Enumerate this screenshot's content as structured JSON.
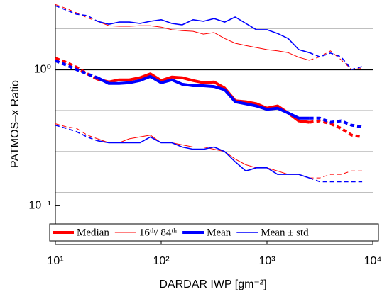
{
  "chart_data": {
    "type": "line",
    "xlabel": "DARDAR IWP [gm⁻²]",
    "ylabel": "PATMOS–x Ratio",
    "xscale": "log",
    "yscale": "log",
    "xlim": [
      10,
      10000
    ],
    "ylim": [
      0.052,
      3.05
    ],
    "xticks": [
      {
        "value": 10,
        "label": "10¹"
      },
      {
        "value": 100,
        "label": "10²"
      },
      {
        "value": 1000,
        "label": "10³"
      },
      {
        "value": 10000,
        "label": "10⁴"
      }
    ],
    "yticks": [
      {
        "value": 0.1,
        "label": "10⁻¹"
      },
      {
        "value": 1,
        "label": "10⁰"
      }
    ],
    "grid_values": [
      2,
      0.5,
      0.25,
      0.125
    ],
    "reference_line": 1,
    "solid_xlim": [
      32,
      2512
    ],
    "legend": "lower center",
    "x": [
      10,
      12.6,
      15.8,
      20,
      25,
      32,
      40,
      50,
      63,
      79,
      100,
      126,
      158,
      200,
      251,
      316,
      398,
      501,
      631,
      794,
      1000,
      1259,
      1585,
      1995,
      2512,
      3162,
      3981,
      5012,
      6310,
      7943
    ],
    "series": [
      {
        "name": "Median",
        "color": "#ff0000",
        "width": 4,
        "values": [
          1.21,
          1.13,
          1.04,
          0.93,
          0.85,
          0.81,
          0.84,
          0.84,
          0.87,
          0.93,
          0.83,
          0.88,
          0.87,
          0.83,
          0.8,
          0.81,
          0.73,
          0.59,
          0.58,
          0.56,
          0.52,
          0.54,
          0.48,
          0.42,
          0.41,
          0.42,
          0.4,
          0.37,
          0.33,
          0.32
        ]
      },
      {
        "name": "16ᵗʰ/ 84ᵗʰ",
        "color": "#ff0000",
        "width": 1,
        "lower": [
          0.4,
          0.38,
          0.37,
          0.33,
          0.31,
          0.29,
          0.29,
          0.31,
          0.32,
          0.33,
          0.29,
          0.29,
          0.28,
          0.27,
          0.27,
          0.26,
          0.25,
          0.22,
          0.2,
          0.19,
          0.19,
          0.18,
          0.17,
          0.17,
          0.16,
          0.16,
          0.17,
          0.17,
          0.18,
          0.18
        ],
        "upper": [
          3.0,
          2.81,
          2.61,
          2.4,
          2.26,
          2.1,
          2.08,
          2.08,
          2.1,
          2.1,
          2.05,
          1.96,
          1.93,
          1.91,
          1.82,
          1.87,
          1.69,
          1.56,
          1.5,
          1.45,
          1.4,
          1.37,
          1.33,
          1.23,
          1.17,
          1.24,
          1.37,
          1.18,
          1.0,
          1.02
        ]
      },
      {
        "name": "Mean",
        "color": "#0000ff",
        "width": 4,
        "values": [
          1.16,
          1.08,
          1.0,
          0.93,
          0.87,
          0.79,
          0.79,
          0.8,
          0.83,
          0.89,
          0.8,
          0.84,
          0.78,
          0.76,
          0.76,
          0.75,
          0.71,
          0.58,
          0.56,
          0.54,
          0.51,
          0.52,
          0.48,
          0.44,
          0.44,
          0.44,
          0.41,
          0.42,
          0.39,
          0.38
        ]
      },
      {
        "name": "Mean ± std",
        "color": "#0000ff",
        "width": 1.6,
        "lower": [
          0.39,
          0.37,
          0.35,
          0.32,
          0.3,
          0.29,
          0.29,
          0.29,
          0.29,
          0.32,
          0.29,
          0.29,
          0.27,
          0.26,
          0.26,
          0.27,
          0.25,
          0.21,
          0.18,
          0.19,
          0.19,
          0.17,
          0.17,
          0.17,
          0.16,
          0.15,
          0.15,
          0.15,
          0.15,
          0.15
        ],
        "upper": [
          2.94,
          2.74,
          2.55,
          2.49,
          2.26,
          2.15,
          2.23,
          2.23,
          2.18,
          2.26,
          2.32,
          2.18,
          2.13,
          2.32,
          2.26,
          2.37,
          2.23,
          2.43,
          2.18,
          1.96,
          1.96,
          1.84,
          1.69,
          1.4,
          1.33,
          1.24,
          1.32,
          1.24,
          1.0,
          1.05
        ]
      }
    ]
  }
}
